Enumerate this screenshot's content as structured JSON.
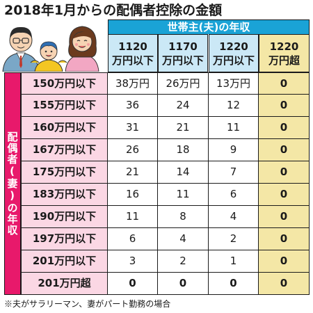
{
  "title": "2018年1月からの配偶者控除の金額",
  "header_group": "世帯主(夫)の年収",
  "side_label": "配偶者(妻)の年収",
  "columns": [
    {
      "line1": "1120",
      "line2": "万円以下"
    },
    {
      "line1": "1170",
      "line2": "万円以下"
    },
    {
      "line1": "1220",
      "line2": "万円以下"
    },
    {
      "line1": "1220",
      "line2": "万円超"
    }
  ],
  "rows": [
    {
      "label": "150万円以下",
      "cells": [
        "38万円",
        "26万円",
        "13万円",
        "0"
      ]
    },
    {
      "label": "155万円以下",
      "cells": [
        "36",
        "24",
        "12",
        "0"
      ]
    },
    {
      "label": "160万円以下",
      "cells": [
        "31",
        "21",
        "11",
        "0"
      ]
    },
    {
      "label": "167万円以下",
      "cells": [
        "26",
        "18",
        "9",
        "0"
      ]
    },
    {
      "label": "175万円以下",
      "cells": [
        "21",
        "14",
        "7",
        "0"
      ]
    },
    {
      "label": "183万円以下",
      "cells": [
        "16",
        "11",
        "6",
        "0"
      ]
    },
    {
      "label": "190万円以下",
      "cells": [
        "11",
        "8",
        "4",
        "0"
      ]
    },
    {
      "label": "197万円以下",
      "cells": [
        "6",
        "4",
        "2",
        "0"
      ]
    },
    {
      "label": "201万円以下",
      "cells": [
        "3",
        "2",
        "1",
        "0"
      ]
    },
    {
      "label": "201万円超",
      "cells": [
        "0",
        "0",
        "0",
        "0"
      ]
    }
  ],
  "footnote": "※夫がサラリーマン、妻がパート勤務の場合",
  "colors": {
    "header_blue": "#1aa3d6",
    "header_light_blue": "#cbe8f6",
    "side_magenta": "#e8196b",
    "row_pink": "#fbd7e4",
    "highlight_yellow": "#f4e7a6"
  }
}
